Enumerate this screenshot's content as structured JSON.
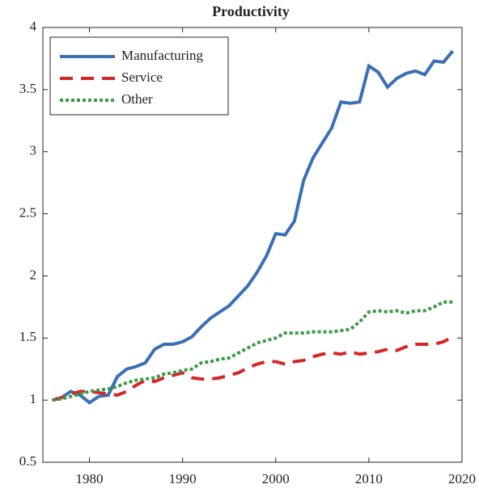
{
  "chart_data": {
    "type": "line",
    "title": "Productivity",
    "x": [
      1976,
      1977,
      1978,
      1979,
      1980,
      1981,
      1982,
      1983,
      1984,
      1985,
      1986,
      1987,
      1988,
      1989,
      1990,
      1991,
      1992,
      1993,
      1994,
      1995,
      1996,
      1997,
      1998,
      1999,
      2000,
      2001,
      2002,
      2003,
      2004,
      2005,
      2006,
      2007,
      2008,
      2009,
      2010,
      2011,
      2012,
      2013,
      2014,
      2015,
      2016,
      2017,
      2018,
      2019
    ],
    "series": [
      {
        "name": "Manufacturing",
        "color": "#3b6fb6",
        "line_style": "solid",
        "values": [
          1.0,
          1.02,
          1.07,
          1.04,
          0.98,
          1.03,
          1.04,
          1.19,
          1.25,
          1.27,
          1.3,
          1.41,
          1.45,
          1.45,
          1.47,
          1.51,
          1.59,
          1.66,
          1.71,
          1.76,
          1.84,
          1.92,
          2.03,
          2.16,
          2.34,
          2.33,
          2.44,
          2.77,
          2.95,
          3.07,
          3.19,
          3.4,
          3.39,
          3.4,
          3.69,
          3.64,
          3.52,
          3.59,
          3.63,
          3.65,
          3.62,
          3.73,
          3.72,
          3.81
        ]
      },
      {
        "name": "Service",
        "color": "#d62728",
        "line_style": "dashed",
        "values": [
          1.0,
          1.02,
          1.05,
          1.07,
          1.07,
          1.06,
          1.05,
          1.04,
          1.07,
          1.12,
          1.16,
          1.15,
          1.18,
          1.2,
          1.22,
          1.18,
          1.17,
          1.17,
          1.18,
          1.2,
          1.22,
          1.26,
          1.29,
          1.31,
          1.31,
          1.29,
          1.31,
          1.32,
          1.35,
          1.37,
          1.38,
          1.37,
          1.39,
          1.37,
          1.38,
          1.39,
          1.41,
          1.4,
          1.43,
          1.45,
          1.45,
          1.45,
          1.47,
          1.51
        ]
      },
      {
        "name": "Other",
        "color": "#3a9a48",
        "line_style": "dotted",
        "values": [
          1.0,
          1.01,
          1.03,
          1.05,
          1.07,
          1.08,
          1.09,
          1.11,
          1.14,
          1.16,
          1.17,
          1.18,
          1.21,
          1.22,
          1.24,
          1.25,
          1.3,
          1.31,
          1.33,
          1.34,
          1.38,
          1.42,
          1.46,
          1.48,
          1.5,
          1.54,
          1.54,
          1.54,
          1.55,
          1.55,
          1.55,
          1.56,
          1.57,
          1.63,
          1.71,
          1.72,
          1.71,
          1.72,
          1.7,
          1.72,
          1.72,
          1.75,
          1.79,
          1.79
        ]
      }
    ],
    "xlim": [
      1975,
      2020
    ],
    "xticks": [
      1980,
      1990,
      2000,
      2010,
      2020
    ],
    "ylim": [
      0.5,
      4
    ],
    "yticks": [
      0.5,
      1,
      1.5,
      2,
      2.5,
      3,
      3.5,
      4
    ],
    "grid": false,
    "legend": "upper left"
  }
}
